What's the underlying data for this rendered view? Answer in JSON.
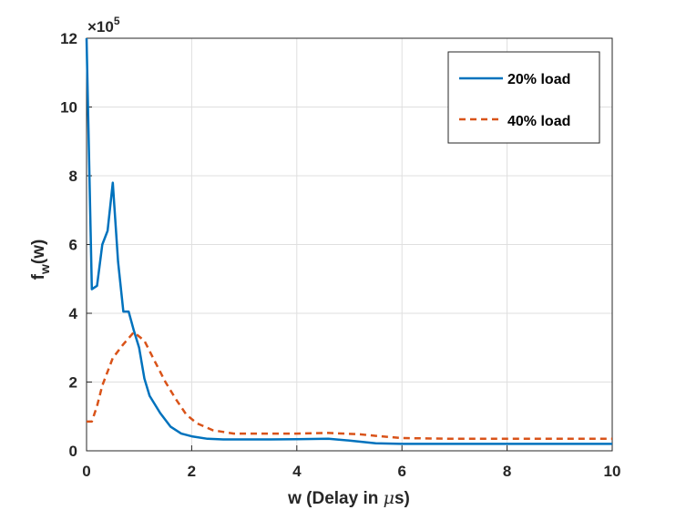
{
  "chart_data": {
    "type": "line",
    "xlabel_main": "w (Delay in ",
    "xlabel_mu": "μ",
    "xlabel_tail": "s)",
    "ylabel_main": "f",
    "ylabel_sub": "w",
    "ylabel_tail": "(w)",
    "y_multiplier_prefix": "×10",
    "y_multiplier_exp": "5",
    "xlim": [
      0,
      10
    ],
    "ylim": [
      0,
      12
    ],
    "grid": true,
    "legend_position": "top-right",
    "x_ticks": [
      0,
      2,
      4,
      6,
      8,
      10
    ],
    "y_ticks": [
      0,
      2,
      4,
      6,
      8,
      10,
      12
    ],
    "series": [
      {
        "name": "20% load",
        "color": "#0072BD",
        "style": "solid",
        "points": [
          [
            0,
            12
          ],
          [
            0.1,
            4.7
          ],
          [
            0.2,
            4.8
          ],
          [
            0.3,
            6
          ],
          [
            0.4,
            6.4
          ],
          [
            0.5,
            7.8
          ],
          [
            0.6,
            5.5
          ],
          [
            0.7,
            4.05
          ],
          [
            0.8,
            4.05
          ],
          [
            0.9,
            3.5
          ],
          [
            1.0,
            3.0
          ],
          [
            1.1,
            2.1
          ],
          [
            1.2,
            1.6
          ],
          [
            1.4,
            1.1
          ],
          [
            1.6,
            0.7
          ],
          [
            1.8,
            0.5
          ],
          [
            2.0,
            0.42
          ],
          [
            2.3,
            0.35
          ],
          [
            2.6,
            0.33
          ],
          [
            3,
            0.33
          ],
          [
            3.5,
            0.33
          ],
          [
            4,
            0.34
          ],
          [
            4.6,
            0.35
          ],
          [
            5,
            0.3
          ],
          [
            5.5,
            0.22
          ],
          [
            6,
            0.2
          ],
          [
            7,
            0.2
          ],
          [
            8,
            0.2
          ],
          [
            9,
            0.2
          ],
          [
            10,
            0.2
          ]
        ]
      },
      {
        "name": "40% load",
        "color": "#D95319",
        "style": "dashed",
        "points": [
          [
            0,
            0.85
          ],
          [
            0.1,
            0.85
          ],
          [
            0.2,
            1.3
          ],
          [
            0.3,
            1.9
          ],
          [
            0.5,
            2.7
          ],
          [
            0.7,
            3.1
          ],
          [
            0.9,
            3.45
          ],
          [
            1.1,
            3.2
          ],
          [
            1.3,
            2.6
          ],
          [
            1.5,
            2.0
          ],
          [
            1.7,
            1.5
          ],
          [
            1.9,
            1.05
          ],
          [
            2.1,
            0.8
          ],
          [
            2.4,
            0.6
          ],
          [
            2.8,
            0.5
          ],
          [
            3.5,
            0.5
          ],
          [
            4,
            0.5
          ],
          [
            4.6,
            0.52
          ],
          [
            5.2,
            0.48
          ],
          [
            5.6,
            0.42
          ],
          [
            6,
            0.37
          ],
          [
            7,
            0.35
          ],
          [
            8,
            0.35
          ],
          [
            9,
            0.35
          ],
          [
            10,
            0.35
          ]
        ]
      }
    ]
  }
}
